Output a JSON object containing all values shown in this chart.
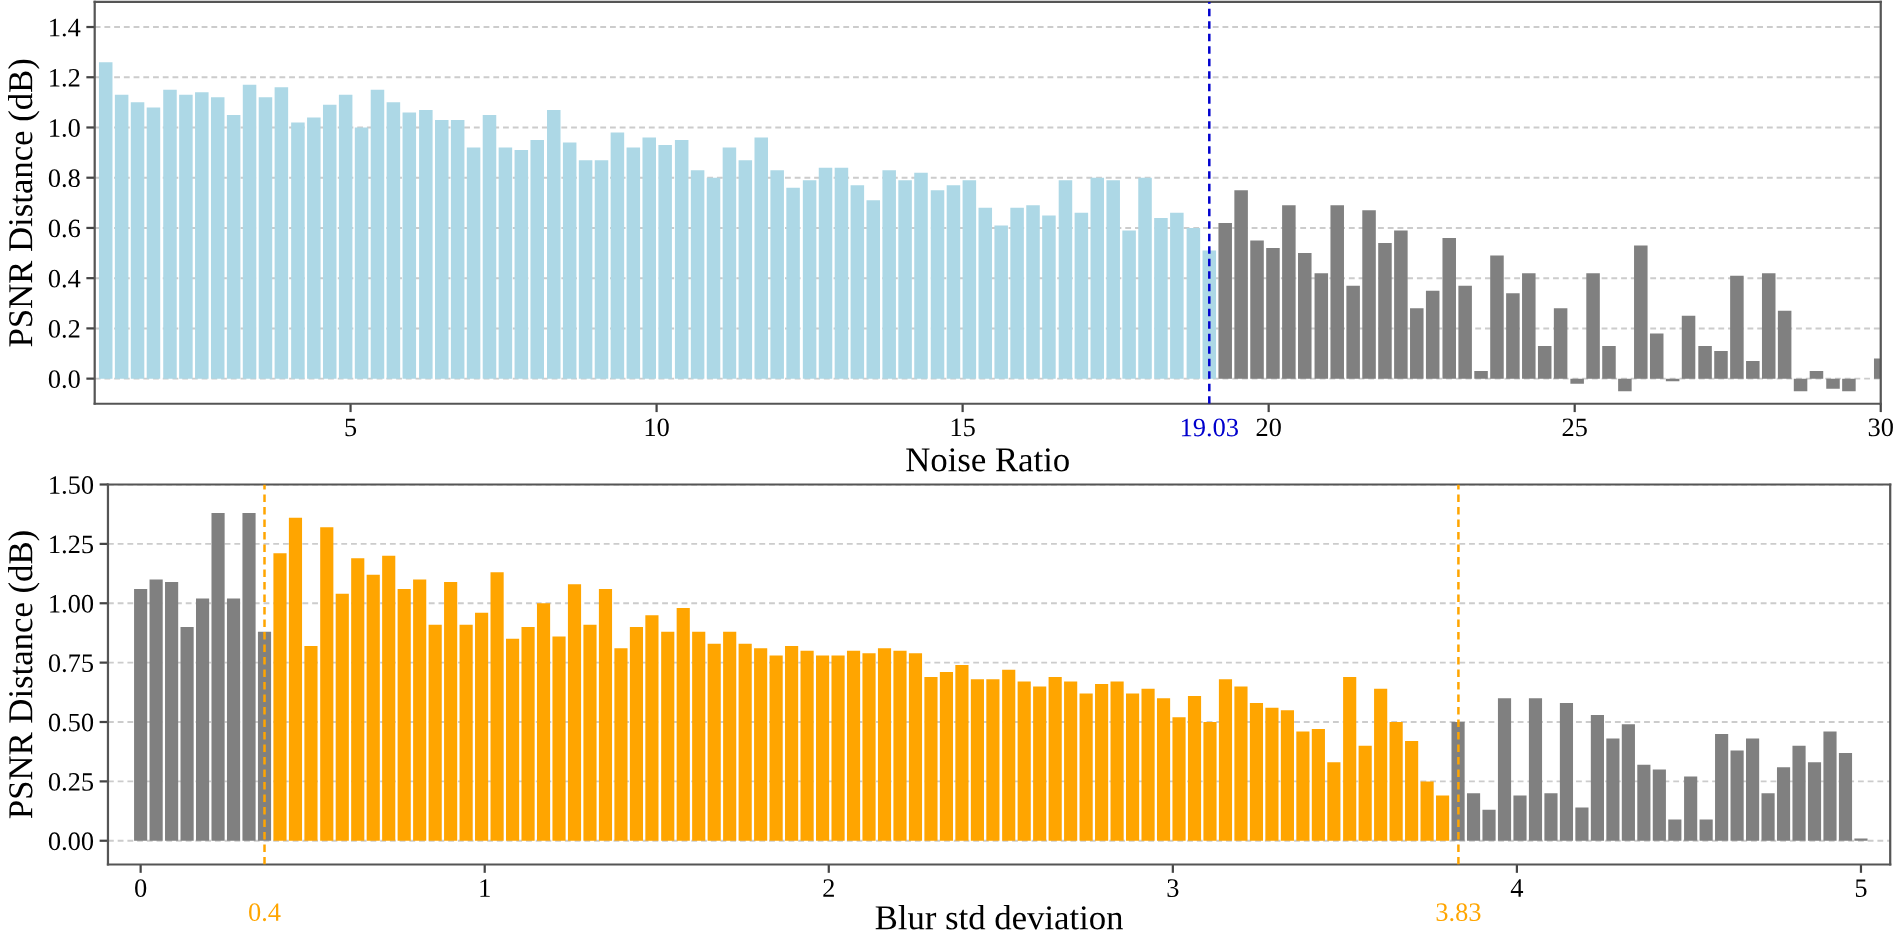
{
  "chart_data": [
    {
      "type": "bar",
      "xlabel": "Noise Ratio",
      "ylabel": "PSNR Distance (dB)",
      "xlim": [
        0.82,
        30
      ],
      "ylim": [
        -0.1,
        1.5
      ],
      "xticks": [
        5,
        10,
        15,
        20,
        25,
        30
      ],
      "yticks": [
        {
          "value": 0,
          "label": "0.0"
        },
        {
          "value": 0.2,
          "label": "0.2"
        },
        {
          "value": 0.4,
          "label": "0.4"
        },
        {
          "value": 0.6,
          "label": "0.6"
        },
        {
          "value": 0.8,
          "label": "0.8"
        },
        {
          "value": 1,
          "label": "1.0"
        },
        {
          "value": 1.2,
          "label": "1.2"
        },
        {
          "value": 1.4,
          "label": "1.4"
        }
      ],
      "grid": "y",
      "ref_lines": [
        {
          "axis": "x",
          "value": 19.03,
          "label": "19.03",
          "color": "#0000cd",
          "line_style": "dashed"
        }
      ],
      "series": [
        {
          "color": "#add8e6",
          "x": [
            1.0,
            1.26,
            1.52,
            1.78,
            2.05,
            2.31,
            2.57,
            2.83,
            3.09,
            3.35,
            3.61,
            3.87,
            4.14,
            4.4,
            4.66,
            4.92,
            5.18,
            5.44,
            5.7,
            5.96,
            6.23,
            6.49,
            6.75,
            7.01,
            7.27,
            7.53,
            7.79,
            8.05,
            8.32,
            8.58,
            8.84,
            9.1,
            9.36,
            9.62,
            9.88,
            10.14,
            10.41,
            10.67,
            10.93,
            11.19,
            11.45,
            11.71,
            11.97,
            12.23,
            12.5,
            12.76,
            13.02,
            13.28,
            13.54,
            13.8,
            14.06,
            14.32,
            14.59,
            14.85,
            15.11,
            15.37,
            15.63,
            15.89,
            16.15,
            16.41,
            16.68,
            16.94,
            17.2,
            17.46,
            17.72,
            17.98,
            18.24,
            18.5,
            18.77,
            19.03
          ],
          "values": [
            1.26,
            1.13,
            1.1,
            1.08,
            1.15,
            1.13,
            1.14,
            1.12,
            1.05,
            1.17,
            1.12,
            1.16,
            1.02,
            1.04,
            1.09,
            1.13,
            1.0,
            1.15,
            1.1,
            1.06,
            1.07,
            1.03,
            1.03,
            0.92,
            1.05,
            0.92,
            0.91,
            0.95,
            1.07,
            0.94,
            0.87,
            0.87,
            0.98,
            0.92,
            0.96,
            0.93,
            0.95,
            0.83,
            0.8,
            0.92,
            0.87,
            0.96,
            0.83,
            0.76,
            0.79,
            0.84,
            0.84,
            0.77,
            0.71,
            0.83,
            0.79,
            0.82,
            0.75,
            0.77,
            0.79,
            0.68,
            0.61,
            0.68,
            0.69,
            0.65,
            0.79,
            0.66,
            0.8,
            0.79,
            0.59,
            0.8,
            0.64,
            0.66,
            0.6,
            0.51
          ]
        },
        {
          "color": "#808080",
          "x": [
            19.29,
            19.55,
            19.81,
            20.07,
            20.33,
            20.59,
            20.86,
            21.12,
            21.38,
            21.64,
            21.9,
            22.16,
            22.42,
            22.68,
            22.95,
            23.21,
            23.47,
            23.73,
            23.99,
            24.25,
            24.51,
            24.77,
            25.04,
            25.3,
            25.56,
            25.82,
            26.08,
            26.34,
            26.6,
            26.86,
            27.13,
            27.39,
            27.65,
            27.91,
            28.17,
            28.43,
            28.69,
            28.95,
            29.22,
            29.48,
            29.74,
            30.0
          ],
          "values": [
            0.62,
            0.75,
            0.55,
            0.52,
            0.69,
            0.5,
            0.42,
            0.69,
            0.37,
            0.67,
            0.54,
            0.59,
            0.28,
            0.35,
            0.56,
            0.37,
            0.03,
            0.49,
            0.34,
            0.42,
            0.13,
            0.28,
            -0.02,
            0.42,
            0.13,
            -0.05,
            0.53,
            0.18,
            -0.01,
            0.25,
            0.13,
            0.11,
            0.41,
            0.07,
            0.42,
            0.27,
            -0.05,
            0.03,
            -0.04,
            -0.05,
            0.0,
            0.08
          ]
        }
      ]
    },
    {
      "type": "bar",
      "xlabel": "Blur std deviation",
      "ylabel": "PSNR Distance (dB)",
      "xlim": [
        -0.095,
        5.085
      ],
      "ylim": [
        -0.1,
        1.5
      ],
      "xticks": [
        0,
        1,
        2,
        3,
        4,
        5
      ],
      "yticks": [
        {
          "value": 0,
          "label": "0.00"
        },
        {
          "value": 0.25,
          "label": "0.25"
        },
        {
          "value": 0.5,
          "label": "0.50"
        },
        {
          "value": 0.75,
          "label": "0.75"
        },
        {
          "value": 1,
          "label": "1.00"
        },
        {
          "value": 1.25,
          "label": "1.25"
        },
        {
          "value": 1.5,
          "label": "1.50"
        }
      ],
      "grid": "y",
      "ref_lines": [
        {
          "axis": "x",
          "value": 0.36,
          "label": "0.4",
          "color": "#ffa500",
          "line_style": "dashed"
        },
        {
          "axis": "x",
          "value": 3.83,
          "label": "3.83",
          "color": "#ffa500",
          "line_style": "dashed"
        }
      ],
      "series": [
        {
          "color": "#808080",
          "x": [
            0,
            0.045,
            0.09,
            0.135,
            0.18,
            0.225,
            0.27,
            0.315,
            0.36,
            3.829,
            3.874,
            3.919,
            3.964,
            4.009,
            4.054,
            4.099,
            4.144,
            4.189,
            4.234,
            4.279,
            4.324,
            4.369,
            4.414,
            4.459,
            4.505,
            4.55,
            4.595,
            4.64,
            4.685,
            4.73,
            4.775,
            4.82,
            4.865,
            4.91,
            4.955,
            5
          ],
          "values": [
            1.06,
            1.1,
            1.09,
            0.9,
            1.02,
            1.38,
            1.02,
            1.38,
            0.88,
            0.5,
            0.2,
            0.13,
            0.6,
            0.19,
            0.6,
            0.2,
            0.58,
            0.14,
            0.53,
            0.43,
            0.49,
            0.32,
            0.3,
            0.09,
            0.27,
            0.09,
            0.45,
            0.38,
            0.43,
            0.2,
            0.31,
            0.4,
            0.33,
            0.46,
            0.37,
            0.01
          ]
        },
        {
          "color": "#ffa500",
          "x": [
            0.405,
            0.45,
            0.495,
            0.541,
            0.586,
            0.631,
            0.676,
            0.721,
            0.766,
            0.811,
            0.856,
            0.901,
            0.946,
            0.991,
            1.036,
            1.081,
            1.126,
            1.171,
            1.216,
            1.261,
            1.306,
            1.351,
            1.396,
            1.441,
            1.486,
            1.532,
            1.577,
            1.622,
            1.667,
            1.712,
            1.757,
            1.802,
            1.847,
            1.892,
            1.937,
            1.982,
            2.027,
            2.072,
            2.117,
            2.162,
            2.207,
            2.252,
            2.297,
            2.342,
            2.387,
            2.432,
            2.477,
            2.523,
            2.568,
            2.613,
            2.658,
            2.703,
            2.748,
            2.793,
            2.838,
            2.883,
            2.928,
            2.973,
            3.018,
            3.063,
            3.108,
            3.153,
            3.198,
            3.243,
            3.288,
            3.333,
            3.378,
            3.423,
            3.468,
            3.514,
            3.559,
            3.604,
            3.649,
            3.694,
            3.739,
            3.784
          ],
          "values": [
            1.21,
            1.36,
            0.82,
            1.32,
            1.04,
            1.19,
            1.12,
            1.2,
            1.06,
            1.1,
            0.91,
            1.09,
            0.91,
            0.96,
            1.13,
            0.85,
            0.9,
            1.0,
            0.86,
            1.08,
            0.91,
            1.06,
            0.81,
            0.9,
            0.95,
            0.88,
            0.98,
            0.88,
            0.83,
            0.88,
            0.83,
            0.81,
            0.78,
            0.82,
            0.8,
            0.78,
            0.78,
            0.8,
            0.79,
            0.81,
            0.8,
            0.79,
            0.69,
            0.71,
            0.74,
            0.68,
            0.68,
            0.72,
            0.67,
            0.65,
            0.69,
            0.67,
            0.62,
            0.66,
            0.67,
            0.62,
            0.64,
            0.6,
            0.52,
            0.61,
            0.5,
            0.68,
            0.65,
            0.58,
            0.56,
            0.55,
            0.46,
            0.47,
            0.33,
            0.69,
            0.4,
            0.64,
            0.5,
            0.42,
            0.25,
            0.19
          ]
        }
      ]
    }
  ]
}
